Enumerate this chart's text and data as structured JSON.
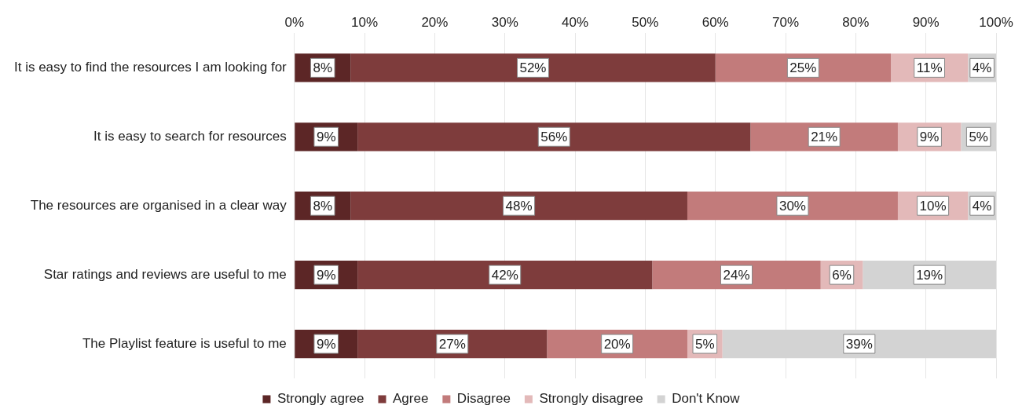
{
  "chart_data": {
    "type": "bar",
    "orientation": "horizontal",
    "stacked": true,
    "categories": [
      "It is easy to find the resources I am looking for",
      "It is easy to search for resources",
      "The resources are organised in a clear way",
      "Star ratings and reviews are useful to me",
      "The Playlist feature is useful to me"
    ],
    "series": [
      {
        "name": "Strongly agree",
        "color": "#5c2626",
        "values": [
          8,
          9,
          8,
          9,
          9
        ],
        "value_labels": [
          "8%",
          "9%",
          "8%",
          "9%",
          "9%"
        ]
      },
      {
        "name": "Agree",
        "color": "#7e3c3c",
        "values": [
          52,
          56,
          48,
          42,
          27
        ],
        "value_labels": [
          "52%",
          "56%",
          "48%",
          "42%",
          "27%"
        ]
      },
      {
        "name": "Disagree",
        "color": "#c27b7b",
        "values": [
          25,
          21,
          30,
          24,
          20
        ],
        "value_labels": [
          "25%",
          "21%",
          "30%",
          "24%",
          "20%"
        ]
      },
      {
        "name": "Strongly disagree",
        "color": "#e3b9b9",
        "values": [
          11,
          9,
          10,
          6,
          5
        ],
        "value_labels": [
          "11%",
          "9%",
          "10%",
          "6%",
          "5%"
        ]
      },
      {
        "name": "Don't Know",
        "color": "#d3d3d3",
        "values": [
          4,
          5,
          4,
          19,
          39
        ],
        "value_labels": [
          "4%",
          "5%",
          "4%",
          "19%",
          "39%"
        ]
      }
    ],
    "xlim": [
      0,
      100
    ],
    "xticks": [
      {
        "value": 0,
        "label": "0%"
      },
      {
        "value": 10,
        "label": "10%"
      },
      {
        "value": 20,
        "label": "20%"
      },
      {
        "value": 30,
        "label": "30%"
      },
      {
        "value": 40,
        "label": "40%"
      },
      {
        "value": 50,
        "label": "50%"
      },
      {
        "value": 60,
        "label": "60%"
      },
      {
        "value": 70,
        "label": "70%"
      },
      {
        "value": 80,
        "label": "80%"
      },
      {
        "value": 90,
        "label": "90%"
      },
      {
        "value": 100,
        "label": "100%"
      }
    ],
    "grid": "x",
    "legend": "bottom"
  }
}
